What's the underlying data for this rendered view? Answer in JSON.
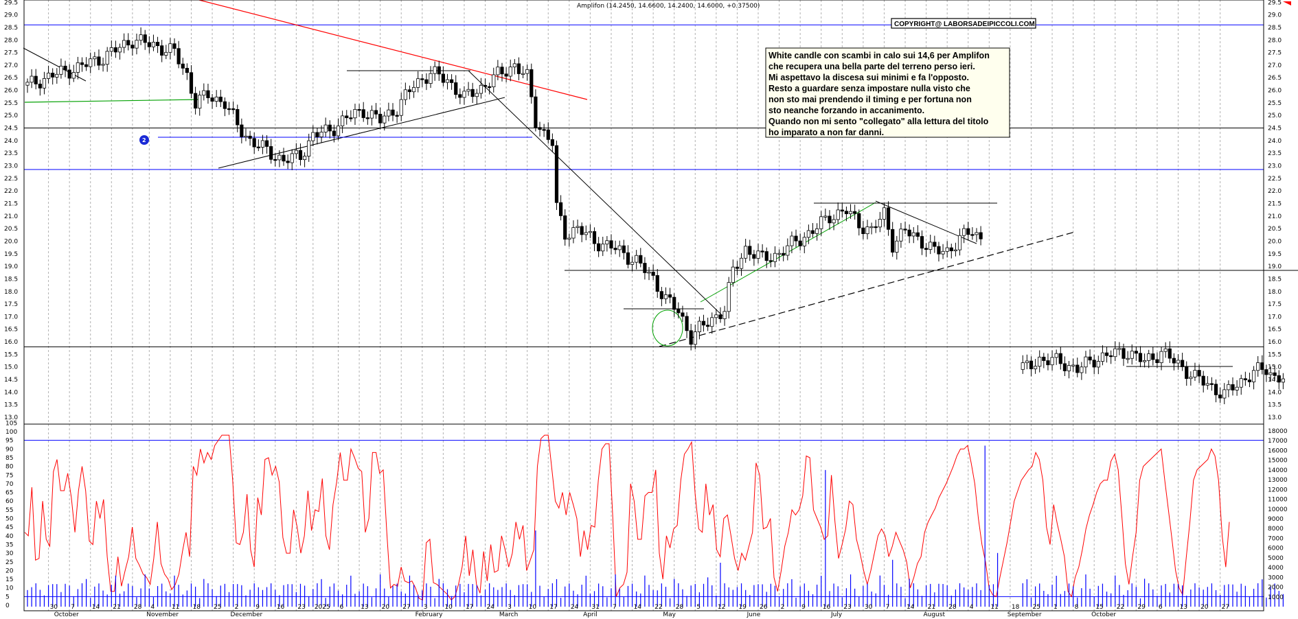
{
  "header": {
    "quote": "Amplifon (14.2450, 14.6600, 14.2400, 14.6000, +0.37500)",
    "copyright": "COPYRIGHT@ LABORSADEIPICCOLI.COM"
  },
  "annotation": {
    "lines": [
      "White candle con scambi in calo sui 14,6 per Amplifon",
      "che recupera una bella parte del terreno perso ieri.",
      "Mi aspettavo la discesa sui minimi e fa l'opposto.",
      "Resto a guardare senza impostare nulla visto che",
      "non sto mai prendendo il timing e per fortuna non",
      "sto neanche forzando in accanimento.",
      "Quando non mi sento \"collegato\" alla lettura del titolo",
      "ho imparato a non far danni."
    ]
  },
  "marker": {
    "label": "2"
  },
  "colors": {
    "candle_up": "#ffffff",
    "candle_down": "#000000",
    "oscillator": "#ff0000",
    "volume": "#0000ff",
    "support": "#0000ff",
    "resistance_trend": "#ff0000",
    "channel": "#00a000",
    "grid": "#b0b0b0"
  },
  "chart_data": [
    {
      "type": "candlestick",
      "title": "Amplifon",
      "ylim": [
        12.5,
        29.5
      ],
      "y_ticks": [
        "13.0",
        "13.5",
        "14.0",
        "14.5",
        "15.0",
        "15.5",
        "16.0",
        "16.5",
        "17.0",
        "17.5",
        "18.0",
        "18.5",
        "19.0",
        "19.5",
        "20.0",
        "20.5",
        "21.0",
        "21.5",
        "22.0",
        "22.5",
        "23.0",
        "23.5",
        "24.0",
        "24.5",
        "25.0",
        "25.5",
        "26.0",
        "26.5",
        "27.0",
        "27.5",
        "28.0",
        "28.5",
        "29.0",
        "29.5"
      ],
      "horizontal_levels": [
        {
          "value": 28.6,
          "color": "blue"
        },
        {
          "value": 24.5,
          "color": "black"
        },
        {
          "value": 22.85,
          "color": "blue"
        },
        {
          "value": 15.8,
          "color": "black"
        }
      ],
      "close_path": [
        [
          0,
          26.2
        ],
        [
          6,
          26.6
        ],
        [
          12,
          26.9
        ],
        [
          18,
          27.3
        ],
        [
          25,
          28.0
        ],
        [
          30,
          27.8
        ],
        [
          35,
          27.5
        ],
        [
          38,
          26.6
        ],
        [
          40,
          25.5
        ],
        [
          43,
          25.8
        ],
        [
          47,
          25.5
        ],
        [
          50,
          24.6
        ],
        [
          53,
          24.0
        ],
        [
          57,
          23.6
        ],
        [
          61,
          23.2
        ],
        [
          65,
          23.4
        ],
        [
          68,
          24.2
        ],
        [
          72,
          24.4
        ],
        [
          76,
          24.9
        ],
        [
          80,
          25.2
        ],
        [
          84,
          24.8
        ],
        [
          88,
          25.3
        ],
        [
          92,
          26.2
        ],
        [
          96,
          26.7
        ],
        [
          100,
          26.4
        ],
        [
          104,
          25.7
        ],
        [
          108,
          26.1
        ],
        [
          112,
          26.6
        ],
        [
          116,
          27.0
        ],
        [
          119,
          26.5
        ],
        [
          121,
          24.8
        ],
        [
          123,
          24.3
        ],
        [
          125,
          23.9
        ],
        [
          126,
          21.3
        ],
        [
          128,
          20.3
        ],
        [
          131,
          20.5
        ],
        [
          135,
          20.0
        ],
        [
          140,
          19.7
        ],
        [
          145,
          19.2
        ],
        [
          149,
          18.5
        ],
        [
          152,
          17.7
        ],
        [
          155,
          17.2
        ],
        [
          158,
          16.2
        ],
        [
          160,
          16.5
        ],
        [
          163,
          16.9
        ],
        [
          166,
          17.3
        ],
        [
          168,
          18.8
        ],
        [
          171,
          19.7
        ],
        [
          175,
          19.3
        ],
        [
          179,
          19.5
        ],
        [
          183,
          20.0
        ],
        [
          187,
          20.4
        ],
        [
          191,
          21.0
        ],
        [
          195,
          21.2
        ],
        [
          198,
          20.7
        ],
        [
          201,
          20.4
        ],
        [
          204,
          21.1
        ],
        [
          206,
          19.9
        ],
        [
          209,
          20.4
        ],
        [
          213,
          20.0
        ],
        [
          216,
          19.6
        ],
        [
          219,
          19.6
        ],
        [
          222,
          20.1
        ],
        [
          225,
          20.4
        ],
        [
          227,
          20.1
        ]
      ],
      "close_path_2": [
        [
          237,
          14.9
        ],
        [
          241,
          15.3
        ],
        [
          246,
          15.2
        ],
        [
          250,
          14.9
        ],
        [
          254,
          15.3
        ],
        [
          258,
          15.5
        ],
        [
          262,
          15.6
        ],
        [
          266,
          15.2
        ],
        [
          270,
          15.6
        ],
        [
          274,
          15.1
        ],
        [
          278,
          14.6
        ],
        [
          282,
          14.2
        ],
        [
          285,
          13.9
        ],
        [
          288,
          14.3
        ],
        [
          292,
          14.8
        ],
        [
          295,
          14.9
        ],
        [
          297,
          14.6
        ],
        [
          299,
          14.6
        ]
      ]
    },
    {
      "type": "line",
      "name": "",
      "ylim": [
        0,
        105
      ],
      "y_ticks": [
        "0",
        "5",
        "10",
        "15",
        "20",
        "25",
        "30",
        "35",
        "40",
        "45",
        "50",
        "55",
        "60",
        "65",
        "70",
        "75",
        "80",
        "85",
        "90",
        "95",
        "100",
        "105"
      ],
      "horizontal_levels": [
        95,
        5
      ],
      "values": [
        42,
        40,
        68,
        26,
        27,
        60,
        38,
        34,
        77,
        84,
        66,
        66,
        76,
        62,
        42,
        66,
        80,
        66,
        37,
        35,
        60,
        50,
        61,
        28,
        8,
        8,
        28,
        11,
        20,
        28,
        45,
        27,
        23,
        18,
        16,
        12,
        27,
        48,
        24,
        18,
        15,
        9,
        12,
        18,
        31,
        42,
        28,
        80,
        75,
        90,
        82,
        88,
        84,
        92,
        95,
        98,
        98,
        98,
        72,
        36,
        35,
        42,
        64,
        32,
        22,
        62,
        52,
        84,
        85,
        75,
        80,
        71,
        39,
        30,
        30,
        55,
        45,
        30,
        40,
        66,
        43,
        55,
        54,
        73,
        40,
        32,
        58,
        71,
        88,
        72,
        72,
        90,
        85,
        79,
        77,
        42,
        50,
        88,
        88,
        76,
        78,
        42,
        10,
        12,
        11,
        22,
        14,
        13,
        14,
        10,
        4,
        3,
        36,
        38,
        13,
        12,
        10,
        8,
        6,
        3,
        5,
        12,
        22,
        40,
        17,
        32,
        12,
        7,
        31,
        14,
        35,
        19,
        20,
        40,
        32,
        22,
        30,
        48,
        38,
        46,
        20,
        26,
        32,
        80,
        96,
        98,
        98,
        79,
        60,
        56,
        65,
        52,
        65,
        58,
        50,
        28,
        43,
        32,
        46,
        45,
        72,
        90,
        93,
        93,
        52,
        5,
        10,
        12,
        19,
        70,
        60,
        38,
        38,
        63,
        65,
        65,
        78,
        30,
        15,
        40,
        33,
        44,
        46,
        72,
        87,
        90,
        94,
        64,
        44,
        42,
        70,
        52,
        58,
        32,
        28,
        50,
        52,
        40,
        27,
        20,
        30,
        26,
        34,
        42,
        82,
        75,
        44,
        45,
        50,
        16,
        8,
        20,
        34,
        42,
        55,
        52,
        55,
        63,
        86,
        85,
        55,
        50,
        45,
        38,
        40,
        75,
        48,
        27,
        35,
        44,
        60,
        58,
        38,
        30,
        20,
        12,
        20,
        30,
        40,
        44,
        40,
        28,
        34,
        42,
        37,
        32,
        25,
        10,
        16,
        24,
        28,
        42,
        48,
        52,
        56,
        62,
        66,
        70,
        75,
        80,
        86,
        90,
        90,
        92,
        82,
        70,
        50,
        35,
        25,
        10,
        6,
        5,
        16,
        26,
        36,
        48,
        60,
        66,
        72,
        75,
        78,
        80,
        88,
        84,
        72,
        45,
        35,
        58,
        47,
        38,
        28,
        8,
        5,
        16,
        22,
        32,
        44,
        52,
        58,
        65,
        70,
        72,
        72,
        83,
        87,
        78,
        52,
        24,
        12,
        28,
        42,
        72,
        80,
        82,
        84,
        86,
        88,
        90,
        72,
        55,
        38,
        20,
        10,
        6,
        28,
        48,
        72,
        78,
        80,
        82,
        84,
        90,
        86,
        72,
        40,
        22,
        48
      ]
    },
    {
      "type": "bar",
      "name": "",
      "ylim": [
        0,
        18000
      ],
      "y_ticks": [
        "1000",
        "2000",
        "3000",
        "4000",
        "5000",
        "6000",
        "7000",
        "8000",
        "9000",
        "10000",
        "11000",
        "12000",
        "13000",
        "14000",
        "15000",
        "16000",
        "17000",
        "18000"
      ],
      "spikes": [
        {
          "day": 121,
          "value": 7800
        },
        {
          "day": 149,
          "value": 1700
        },
        {
          "day": 162,
          "value": 3000
        },
        {
          "day": 165,
          "value": 4500
        },
        {
          "day": 190,
          "value": 14000
        },
        {
          "day": 206,
          "value": 4800
        },
        {
          "day": 228,
          "value": 16500
        },
        {
          "day": 231,
          "value": 5500
        }
      ]
    }
  ],
  "x_axis": {
    "day_labels": [
      {
        "d": 5,
        "t": "30"
      },
      {
        "d": 10,
        "t": "7"
      },
      {
        "d": 15,
        "t": "14"
      },
      {
        "d": 20,
        "t": "21"
      },
      {
        "d": 25,
        "t": "28"
      },
      {
        "d": 29,
        "t": "4"
      },
      {
        "d": 34,
        "t": "11"
      },
      {
        "d": 39,
        "t": "18"
      },
      {
        "d": 44,
        "t": "25"
      },
      {
        "d": 49,
        "t": "2"
      },
      {
        "d": 54,
        "t": "9"
      },
      {
        "d": 59,
        "t": "16"
      },
      {
        "d": 64,
        "t": "23"
      },
      {
        "d": 68,
        "t": "2025"
      },
      {
        "d": 74,
        "t": "6"
      },
      {
        "d": 79,
        "t": "13"
      },
      {
        "d": 84,
        "t": "20"
      },
      {
        "d": 89,
        "t": "27"
      },
      {
        "d": 94,
        "t": "3"
      },
      {
        "d": 99,
        "t": "10"
      },
      {
        "d": 104,
        "t": "17"
      },
      {
        "d": 109,
        "t": "24"
      },
      {
        "d": 114,
        "t": "3"
      },
      {
        "d": 119,
        "t": "10"
      },
      {
        "d": 124,
        "t": "17"
      },
      {
        "d": 129,
        "t": "24"
      },
      {
        "d": 134,
        "t": "31"
      },
      {
        "d": 139,
        "t": "7"
      },
      {
        "d": 144,
        "t": "14"
      },
      {
        "d": 149,
        "t": "22"
      },
      {
        "d": 154,
        "t": "28"
      },
      {
        "d": 159,
        "t": "5"
      },
      {
        "d": 164,
        "t": "12"
      },
      {
        "d": 169,
        "t": "19"
      },
      {
        "d": 174,
        "t": "26"
      },
      {
        "d": 179,
        "t": "2"
      },
      {
        "d": 184,
        "t": "9"
      },
      {
        "d": 189,
        "t": "16"
      },
      {
        "d": 194,
        "t": "23"
      },
      {
        "d": 199,
        "t": "30"
      },
      {
        "d": 204,
        "t": "7"
      },
      {
        "d": 209,
        "t": "14"
      },
      {
        "d": 214,
        "t": "21"
      },
      {
        "d": 219,
        "t": "28"
      },
      {
        "d": 224,
        "t": "4"
      },
      {
        "d": 229,
        "t": "11"
      },
      {
        "d": 234,
        "t": "18"
      },
      {
        "d": 239,
        "t": "25"
      },
      {
        "d": 244,
        "t": "1"
      },
      {
        "d": 249,
        "t": "8"
      },
      {
        "d": 254,
        "t": "15"
      },
      {
        "d": 259,
        "t": "22"
      },
      {
        "d": 264,
        "t": "29"
      },
      {
        "d": 269,
        "t": "6"
      },
      {
        "d": 274,
        "t": "13"
      },
      {
        "d": 279,
        "t": "20"
      },
      {
        "d": 284,
        "t": "27"
      }
    ],
    "month_labels": [
      {
        "d": 6,
        "t": "October"
      },
      {
        "d": 28,
        "t": "November"
      },
      {
        "d": 48,
        "t": "December"
      },
      {
        "d": 92,
        "t": "February"
      },
      {
        "d": 112,
        "t": "March"
      },
      {
        "d": 132,
        "t": "April"
      },
      {
        "d": 151,
        "t": "May"
      },
      {
        "d": 171,
        "t": "June"
      },
      {
        "d": 191,
        "t": "July"
      },
      {
        "d": 213,
        "t": "August"
      },
      {
        "d": 233,
        "t": "September"
      },
      {
        "d": 253,
        "t": "October"
      }
    ]
  }
}
